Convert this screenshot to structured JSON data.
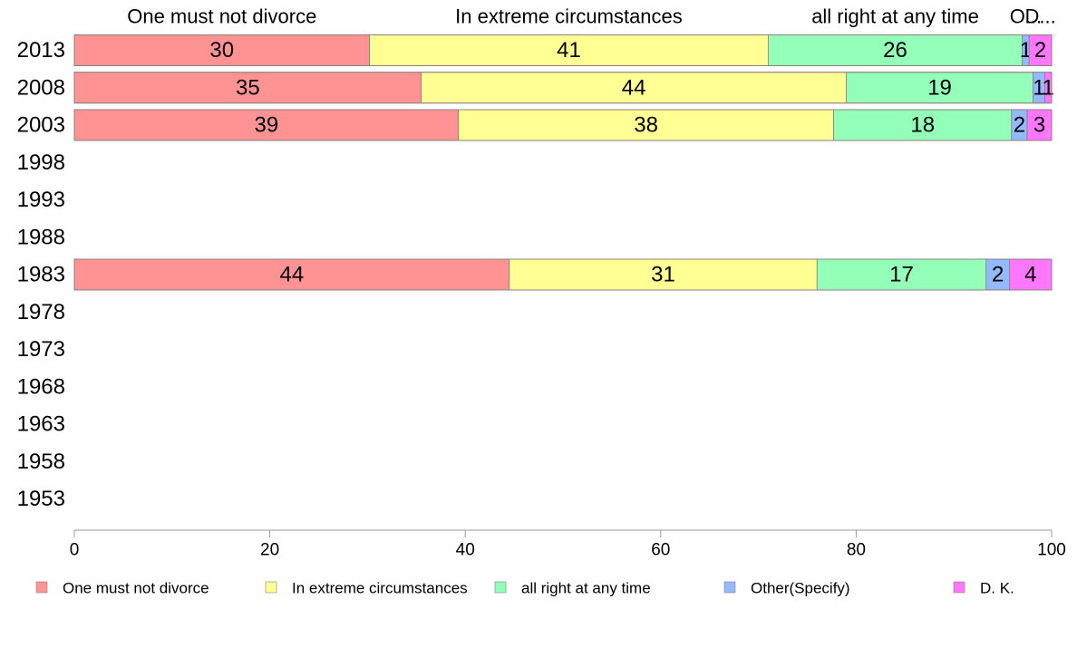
{
  "chart_data": {
    "type": "bar",
    "orientation": "horizontal",
    "stacked": true,
    "title": "",
    "xlabel": "",
    "ylabel": "",
    "xlim": [
      0,
      100
    ],
    "x_ticks": [
      0,
      20,
      40,
      60,
      80,
      100
    ],
    "grid": false,
    "legend_position": "bottom",
    "categories": [
      "2013",
      "2008",
      "2003",
      "1998",
      "1993",
      "1988",
      "1983",
      "1978",
      "1973",
      "1968",
      "1963",
      "1958",
      "1953"
    ],
    "top_labels": [
      "One must not divorce",
      "In extreme circumstances",
      "all right at any time",
      "O...",
      "D..."
    ],
    "series": [
      {
        "name": "One must not divorce",
        "color": "#ff9393",
        "values": [
          30.2,
          35.5,
          39.3,
          null,
          null,
          null,
          44.5,
          null,
          null,
          null,
          null,
          null,
          null
        ],
        "labels": [
          "30",
          "35",
          "39",
          "",
          "",
          "",
          "44",
          "",
          "",
          "",
          "",
          "",
          ""
        ]
      },
      {
        "name": "In extreme circumstances",
        "color": "#ffff93",
        "values": [
          40.8,
          43.5,
          38.4,
          null,
          null,
          null,
          31.5,
          null,
          null,
          null,
          null,
          null,
          null
        ],
        "labels": [
          "41",
          "44",
          "38",
          "",
          "",
          "",
          "31",
          "",
          "",
          "",
          "",
          "",
          ""
        ]
      },
      {
        "name": "all right at any time",
        "color": "#93ffb9",
        "values": [
          26.0,
          19.1,
          18.2,
          null,
          null,
          null,
          17.3,
          null,
          null,
          null,
          null,
          null,
          null
        ],
        "labels": [
          "26",
          "19",
          "18",
          "",
          "",
          "",
          "17",
          "",
          "",
          "",
          "",
          "",
          ""
        ]
      },
      {
        "name": "Other(Specify)",
        "color": "#93b9ff",
        "values": [
          0.7,
          1.2,
          1.6,
          null,
          null,
          null,
          2.4,
          null,
          null,
          null,
          null,
          null,
          null
        ],
        "labels": [
          "1",
          "1",
          "2",
          "",
          "",
          "",
          "2",
          "",
          "",
          "",
          "",
          "",
          ""
        ]
      },
      {
        "name": "D. K.",
        "color": "#ff77ff",
        "values": [
          2.3,
          0.7,
          2.5,
          null,
          null,
          null,
          4.3,
          null,
          null,
          null,
          null,
          null,
          null
        ],
        "labels": [
          "2",
          "1",
          "3",
          "",
          "",
          "",
          "4",
          "",
          "",
          "",
          "",
          "",
          ""
        ]
      }
    ]
  }
}
